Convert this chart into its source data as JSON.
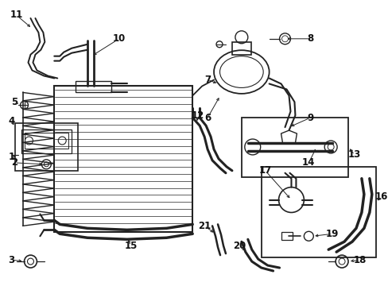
{
  "bg_color": "#ffffff",
  "line_color": "#222222",
  "label_color": "#111111",
  "font_size": 8.5
}
